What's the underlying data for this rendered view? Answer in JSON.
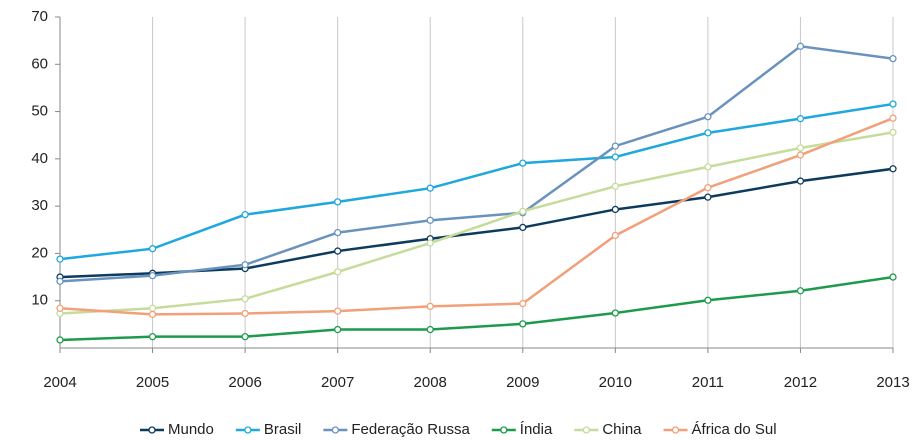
{
  "chart_data": {
    "type": "line",
    "x": [
      2004,
      2005,
      2006,
      2007,
      2008,
      2009,
      2010,
      2011,
      2012,
      2013
    ],
    "xlim": [
      2004,
      2013
    ],
    "xticks": [
      2004,
      2005,
      2006,
      2007,
      2008,
      2009,
      2010,
      2011,
      2012,
      2013
    ],
    "ylim": [
      0,
      70
    ],
    "yticks": [
      10,
      20,
      30,
      40,
      50,
      60,
      70
    ],
    "grid": "x",
    "legend": "bottom",
    "series": [
      {
        "name": "Mundo",
        "color": "#0d3b5e",
        "values": [
          15,
          15.8,
          16.8,
          20.5,
          23.1,
          25.5,
          29.3,
          31.9,
          35.3,
          37.9
        ]
      },
      {
        "name": "Brasil",
        "color": "#1ea8dc",
        "values": [
          18.8,
          21,
          28.2,
          30.9,
          33.8,
          39.1,
          40.4,
          45.5,
          48.5,
          51.6
        ]
      },
      {
        "name": "Federação Russa",
        "color": "#6a92bf",
        "values": [
          14.1,
          15.3,
          17.6,
          24.4,
          27,
          28.6,
          42.7,
          48.9,
          63.8,
          61.2
        ]
      },
      {
        "name": "Índia",
        "color": "#1e9a4c",
        "values": [
          1.7,
          2.4,
          2.4,
          3.9,
          3.9,
          5.1,
          7.4,
          10.1,
          12.1,
          15
        ]
      },
      {
        "name": "China",
        "color": "#c5dc9a",
        "values": [
          7.3,
          8.4,
          10.4,
          16.1,
          22.2,
          28.9,
          34.2,
          38.3,
          42.3,
          45.6
        ]
      },
      {
        "name": "África do Sul",
        "color": "#f2a07a",
        "values": [
          8.4,
          7.1,
          7.3,
          7.8,
          8.8,
          9.4,
          23.8,
          33.9,
          40.8,
          48.6
        ]
      }
    ]
  }
}
